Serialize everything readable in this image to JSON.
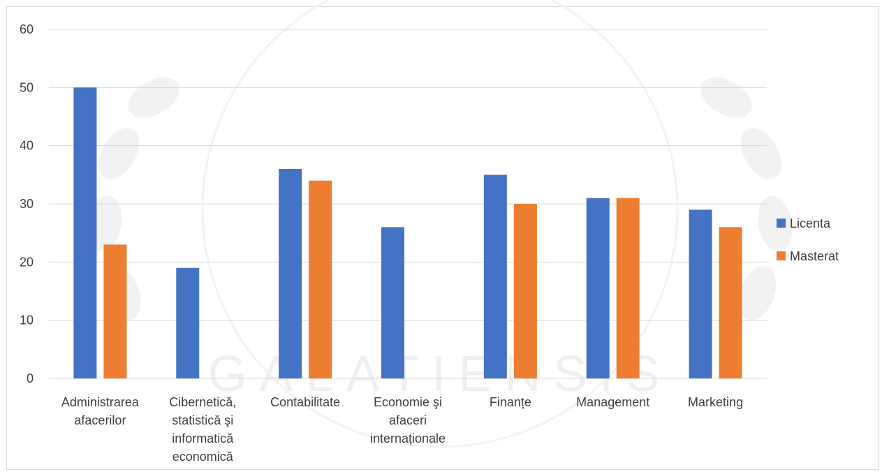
{
  "chart_data": {
    "type": "bar",
    "categories": [
      [
        "Administrarea",
        "afacerilor"
      ],
      [
        "Cibernetică,",
        "statistică şi",
        "informatică",
        "economică"
      ],
      [
        "Contabilitate"
      ],
      [
        "Economie şi",
        "afaceri",
        "internaționale"
      ],
      [
        "Finanțe"
      ],
      [
        "Management"
      ],
      [
        "Marketing"
      ]
    ],
    "series": [
      {
        "name": "Licenta",
        "color": "#4472C4",
        "values": [
          50,
          19,
          36,
          26,
          35,
          31,
          29
        ]
      },
      {
        "name": "Masterat",
        "color": "#ED7D31",
        "values": [
          23,
          null,
          34,
          null,
          30,
          31,
          26
        ]
      }
    ],
    "ylim": [
      0,
      60
    ],
    "yticks": [
      0,
      10,
      20,
      30,
      40,
      50,
      60
    ],
    "grid": true,
    "legend_position": "right",
    "watermark_text": "GALATIENSIS"
  }
}
